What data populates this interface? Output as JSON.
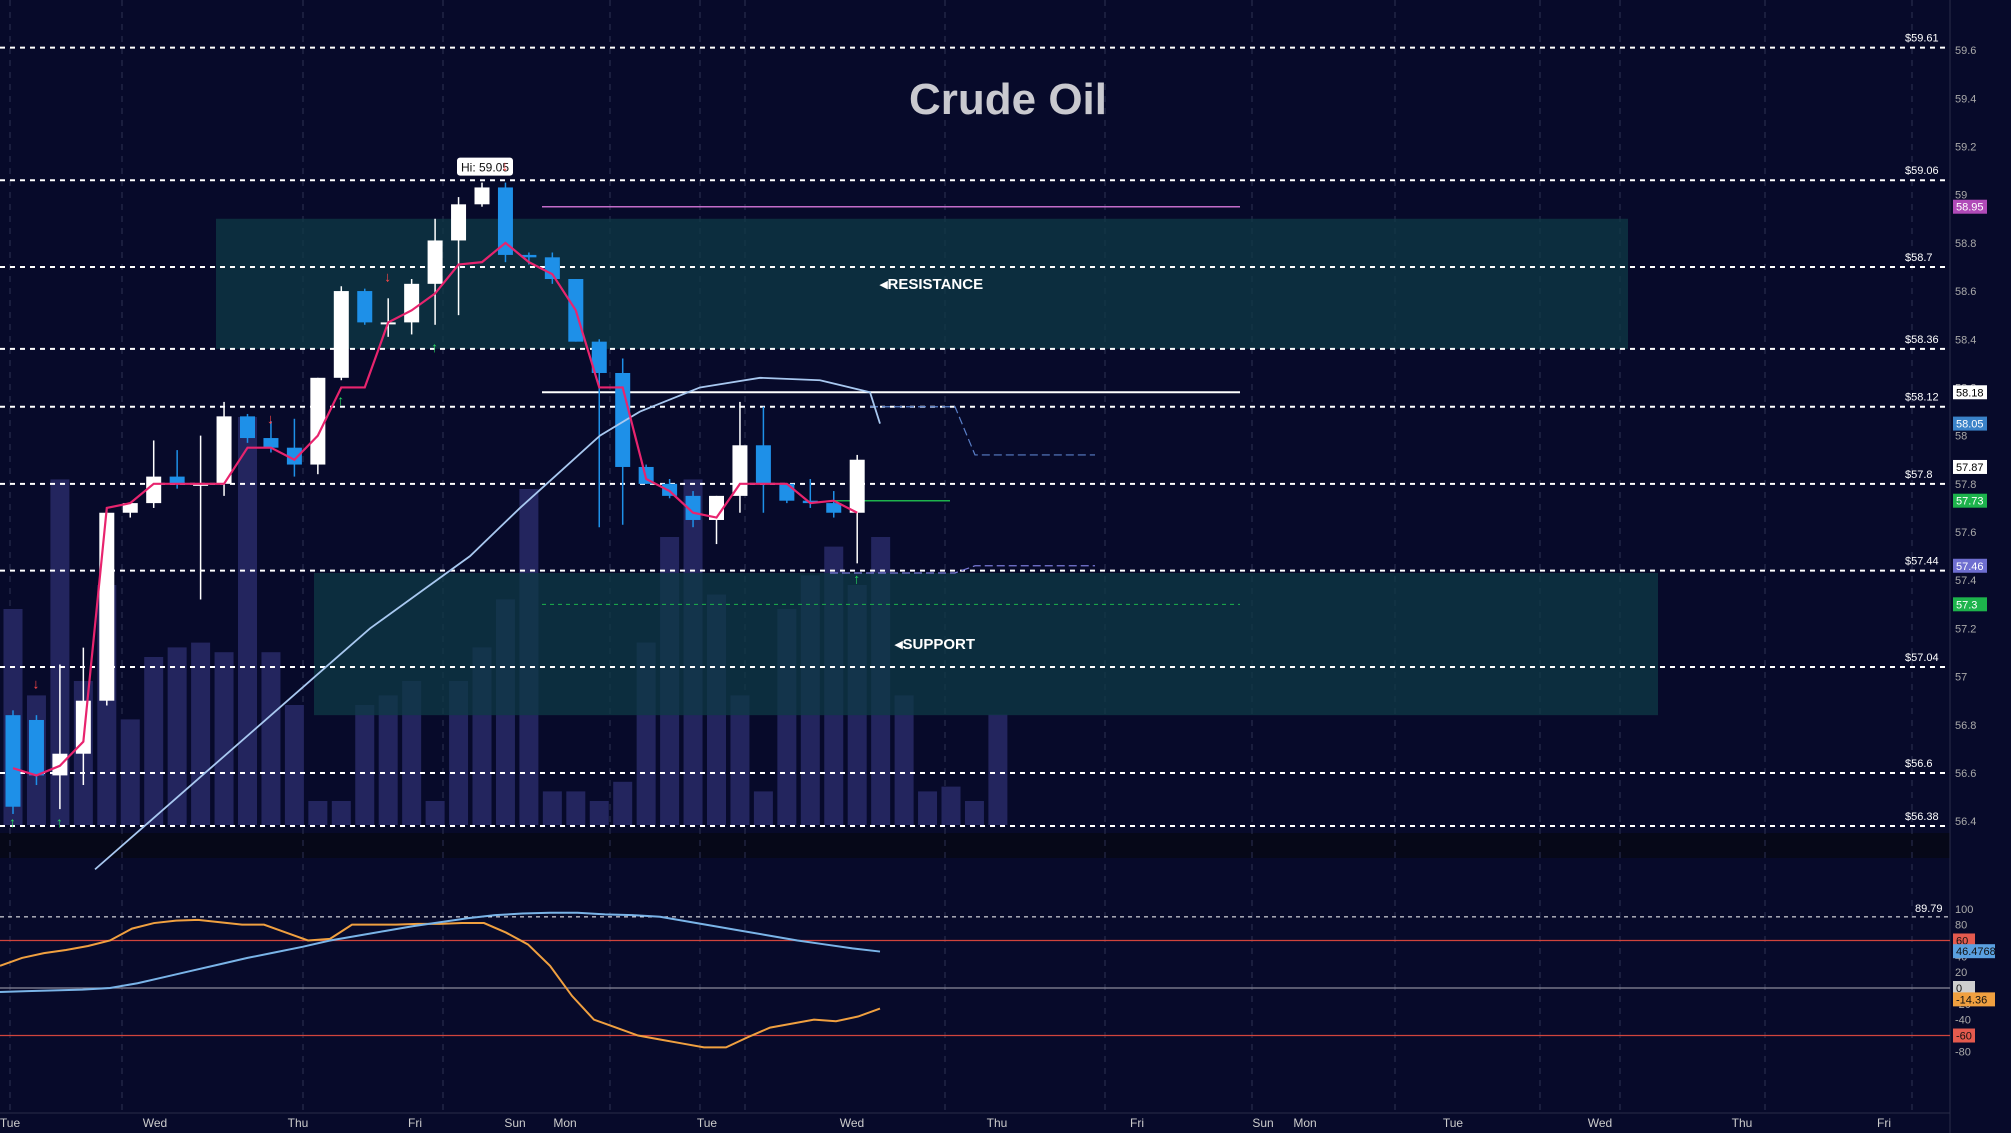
{
  "chart_data": [
    {
      "type": "candlestick",
      "title": "Crude Oil",
      "x_axis_labels": [
        "Tue",
        "Wed",
        "Thu",
        "Fri",
        "Sun",
        "Mon",
        "Tue",
        "Wed",
        "Thu",
        "Fri",
        "Sun",
        "Mon",
        "Tue",
        "Wed",
        "Thu",
        "Fri"
      ],
      "y_axis_ticks": [
        59.6,
        59.4,
        59.2,
        59,
        58.8,
        58.6,
        58.4,
        58.2,
        58,
        57.8,
        57.6,
        57.4,
        57.2,
        57,
        56.8,
        56.6,
        56.4
      ],
      "ylim": [
        56.38,
        59.7
      ],
      "level_lines": [
        59.61,
        59.06,
        58.7,
        58.36,
        58.12,
        57.8,
        57.44,
        57.04,
        56.6,
        56.38
      ],
      "price_tags": [
        {
          "value": 58.95,
          "color": "#b04ab8"
        },
        {
          "value": 58.18,
          "color": "#ffffff"
        },
        {
          "value": 58.05,
          "color": "#3a82c8"
        },
        {
          "value": 57.87,
          "color": "#ffffff"
        },
        {
          "value": 57.73,
          "color": "#1db34c"
        },
        {
          "value": 57.46,
          "color": "#6e6ed0"
        },
        {
          "value": 57.3,
          "color": "#1db34c"
        }
      ],
      "zones": [
        {
          "label": "RESISTANCE",
          "from": 58.36,
          "to": 58.9
        },
        {
          "label": "SUPPORT",
          "from": 56.84,
          "to": 57.43
        }
      ],
      "high_annotation": "Hi: 59.05",
      "candles": [
        [
          56.84,
          56.86,
          56.43,
          56.46
        ],
        [
          56.82,
          56.84,
          56.55,
          56.59
        ],
        [
          56.59,
          57.05,
          56.45,
          56.68
        ],
        [
          56.68,
          57.12,
          56.55,
          56.9
        ],
        [
          56.9,
          57.7,
          56.88,
          57.68
        ],
        [
          57.68,
          57.72,
          57.66,
          57.72
        ],
        [
          57.72,
          57.98,
          57.7,
          57.83
        ],
        [
          57.83,
          57.94,
          57.78,
          57.8
        ],
        [
          57.8,
          58.0,
          57.32,
          57.8
        ],
        [
          57.8,
          58.14,
          57.75,
          58.08
        ],
        [
          58.08,
          58.09,
          57.97,
          57.99
        ],
        [
          57.99,
          58.06,
          57.93,
          57.95
        ],
        [
          57.95,
          58.07,
          57.83,
          57.88
        ],
        [
          57.88,
          58.24,
          57.84,
          58.24
        ],
        [
          58.24,
          58.62,
          58.23,
          58.6
        ],
        [
          58.6,
          58.61,
          58.46,
          58.47
        ],
        [
          58.47,
          58.57,
          58.41,
          58.47
        ],
        [
          58.47,
          58.65,
          58.42,
          58.63
        ],
        [
          58.63,
          58.9,
          58.46,
          58.81
        ],
        [
          58.81,
          58.99,
          58.5,
          58.96
        ],
        [
          58.96,
          59.05,
          58.95,
          59.03
        ],
        [
          59.03,
          59.05,
          58.72,
          58.75
        ],
        [
          58.75,
          58.76,
          58.71,
          58.74
        ],
        [
          58.74,
          58.76,
          58.63,
          58.65
        ],
        [
          58.65,
          58.65,
          58.39,
          58.39
        ],
        [
          58.39,
          58.4,
          57.62,
          58.26
        ],
        [
          58.26,
          58.32,
          57.63,
          57.87
        ],
        [
          57.87,
          57.88,
          57.8,
          57.8
        ],
        [
          57.8,
          57.82,
          57.74,
          57.75
        ],
        [
          57.75,
          57.77,
          57.62,
          57.65
        ],
        [
          57.65,
          57.75,
          57.55,
          57.75
        ],
        [
          57.75,
          58.14,
          57.68,
          57.96
        ],
        [
          57.96,
          58.12,
          57.68,
          57.8
        ],
        [
          57.8,
          57.8,
          57.72,
          57.73
        ],
        [
          57.73,
          57.82,
          57.7,
          57.72
        ],
        [
          57.72,
          57.77,
          57.66,
          57.68
        ],
        [
          57.68,
          57.92,
          57.47,
          57.9
        ]
      ],
      "volume": [
        0.45,
        0.27,
        0.72,
        0.3,
        0.5,
        0.22,
        0.35,
        0.37,
        0.38,
        0.36,
        0.85,
        0.36,
        0.25,
        0.05,
        0.05,
        0.25,
        0.27,
        0.3,
        0.05,
        0.3,
        0.37,
        0.47,
        0.7,
        0.07,
        0.07,
        0.05,
        0.09,
        0.38,
        0.6,
        0.72,
        0.48,
        0.27,
        0.07,
        0.45,
        0.52,
        0.58,
        0.5,
        0.6,
        0.27,
        0.07,
        0.08,
        0.05,
        0.23
      ],
      "ma_fast": [
        56.62,
        56.59,
        56.63,
        56.73,
        57.7,
        57.72,
        57.8,
        57.8,
        57.8,
        57.8,
        57.95,
        57.95,
        57.9,
        58.0,
        58.2,
        58.2,
        58.47,
        58.52,
        58.59,
        58.71,
        58.72,
        58.8,
        58.72,
        58.67,
        58.52,
        58.2,
        58.2,
        57.82,
        57.77,
        57.68,
        57.66,
        57.8,
        57.8,
        57.8,
        57.72,
        57.73,
        57.68
      ],
      "ma_slow": [
        56.2,
        56.4,
        56.6,
        56.8,
        57.0,
        57.2,
        57.35,
        57.5,
        57.7,
        57.85,
        58.0,
        58.1,
        58.2,
        58.24,
        58.23,
        58.18,
        58.05
      ],
      "oscillator": {
        "ticks": [
          100,
          80,
          60,
          40,
          20,
          0,
          -20,
          -40,
          -60,
          -80
        ],
        "top_level": 89.79,
        "levels": [
          60,
          0,
          -60
        ],
        "tags": [
          {
            "value": 60,
            "text": "60",
            "color": "#e45a4e"
          },
          {
            "value": 46.4768,
            "text": "46.4768",
            "color": "#5aa0e0"
          },
          {
            "value": 0,
            "text": "0",
            "color": "#cfcfcf"
          },
          {
            "value": -14.36,
            "text": "-14.36",
            "color": "#f0a040"
          },
          {
            "value": -60,
            "text": "-60",
            "color": "#e45a4e"
          }
        ],
        "k_line": [
          28,
          38,
          44,
          48,
          53,
          60,
          75,
          82,
          85,
          86,
          83,
          80,
          80,
          70,
          60,
          62,
          80,
          80,
          80,
          81,
          81,
          82,
          82,
          70,
          55,
          28,
          -10,
          -40,
          -50,
          -60,
          -65,
          -70,
          -75,
          -75,
          -62,
          -50,
          -45,
          -40,
          -42,
          -36,
          -26
        ],
        "d_line": [
          -5,
          -4,
          -3,
          -2,
          0,
          6,
          14,
          22,
          30,
          38,
          45,
          52,
          60,
          66,
          72,
          78,
          83,
          88,
          92,
          94,
          95,
          95,
          93,
          92,
          90,
          84,
          78,
          72,
          66,
          60,
          55,
          50,
          46
        ]
      }
    }
  ]
}
